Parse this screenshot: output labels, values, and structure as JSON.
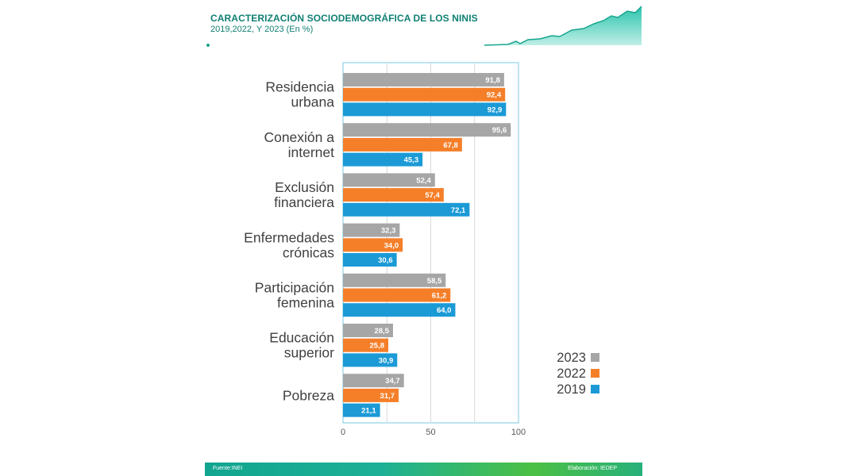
{
  "header": {
    "title": "CARACTERIZACIÓN SOCIODEMOGRÁFICA DE LOS NINIS",
    "subtitle": "2019,2022, Y 2023 (En %)"
  },
  "footer": {
    "source": "Fuente:INEI",
    "credit": "Elaboración: IEDEP"
  },
  "colors": {
    "accent": "#0f7f72",
    "y2023": "#a6a6a6",
    "y2022": "#f57f29",
    "y2019": "#1b9ad6",
    "axis": "#8fd3e6",
    "grid": "#d9d9d9"
  },
  "chart_data": {
    "type": "bar",
    "orientation": "horizontal",
    "categories": [
      [
        "Residencia",
        "urbana"
      ],
      [
        "Conexión a",
        "internet"
      ],
      [
        "Exclusión",
        "financiera"
      ],
      [
        "Enfermedades",
        "crónicas"
      ],
      [
        "Participación",
        "femenina"
      ],
      [
        "Educación",
        "superior"
      ],
      [
        "Pobreza"
      ]
    ],
    "series": [
      {
        "name": "2023",
        "color": "#a6a6a6",
        "values": [
          91.8,
          95.6,
          52.4,
          32.3,
          58.5,
          28.5,
          34.7
        ],
        "labels": [
          "91,8",
          "95,6",
          "52,4",
          "32,3",
          "58,5",
          "28,5",
          "34,7"
        ]
      },
      {
        "name": "2022",
        "color": "#f57f29",
        "values": [
          92.4,
          67.8,
          57.4,
          34.0,
          61.2,
          25.8,
          31.7
        ],
        "labels": [
          "92,4",
          "67,8",
          "57,4",
          "34,0",
          "61,2",
          "25,8",
          "31,7"
        ]
      },
      {
        "name": "2019",
        "color": "#1b9ad6",
        "values": [
          92.9,
          45.3,
          72.1,
          30.6,
          64.0,
          30.9,
          21.1
        ],
        "labels": [
          "92,9",
          "45,3",
          "72,1",
          "30,6",
          "64,0",
          "30,9",
          "21,1"
        ]
      }
    ],
    "xlim": [
      0,
      100
    ],
    "xticks": [
      0,
      50,
      100
    ],
    "grid": true,
    "legend_position": "right"
  }
}
